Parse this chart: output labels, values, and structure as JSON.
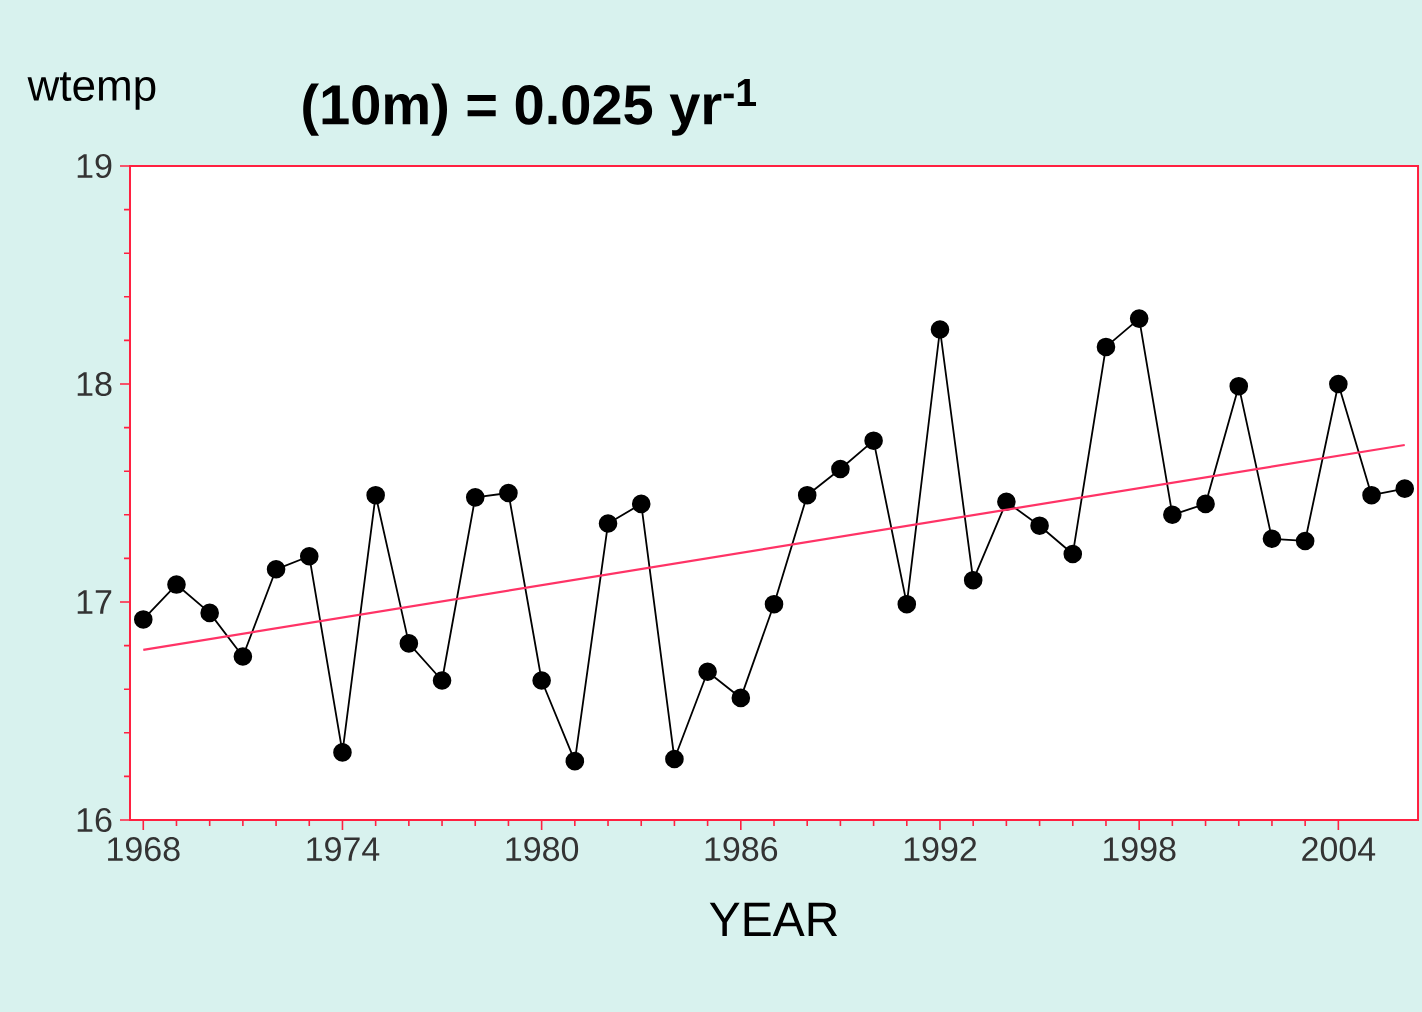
{
  "chart_data": {
    "type": "line",
    "ylabel": "wtemp",
    "xlabel": "YEAR",
    "annotations": [
      "(10m) = 0.025 yr$^{-1}$"
    ],
    "x": [
      1968,
      1969,
      1970,
      1971,
      1972,
      1973,
      1974,
      1975,
      1976,
      1977,
      1978,
      1979,
      1980,
      1981,
      1982,
      1983,
      1984,
      1985,
      1986,
      1987,
      1988,
      1989,
      1990,
      1991,
      1992,
      1993,
      1994,
      1995,
      1996,
      1997,
      1998,
      1999,
      2000,
      2001,
      2002,
      2003,
      2004,
      2005,
      2006
    ],
    "series": [
      {
        "color": "#000000",
        "marker": "circle",
        "values": [
          16.92,
          17.08,
          16.95,
          16.75,
          17.15,
          17.21,
          16.31,
          17.49,
          16.81,
          16.64,
          17.48,
          17.5,
          16.64,
          16.27,
          17.36,
          17.45,
          16.28,
          16.68,
          16.56,
          16.99,
          17.49,
          17.61,
          17.74,
          16.99,
          18.25,
          17.1,
          17.46,
          17.35,
          17.22,
          18.17,
          18.3,
          17.4,
          17.45,
          17.99,
          17.29,
          17.28,
          18.0,
          17.49,
          17.52
        ]
      },
      {
        "type": "line",
        "color": "#ff3366",
        "marker": "none",
        "x": [
          1968,
          2006
        ],
        "values": [
          16.78,
          17.72
        ]
      }
    ],
    "xlim": [
      1967.6,
      2006.4
    ],
    "ylim": [
      16,
      19
    ],
    "xticks": [
      1968,
      1974,
      1980,
      1986,
      1992,
      1998,
      2004
    ],
    "yticks": [
      16,
      17,
      18,
      19
    ],
    "grid": false,
    "line_style": "solid"
  }
}
